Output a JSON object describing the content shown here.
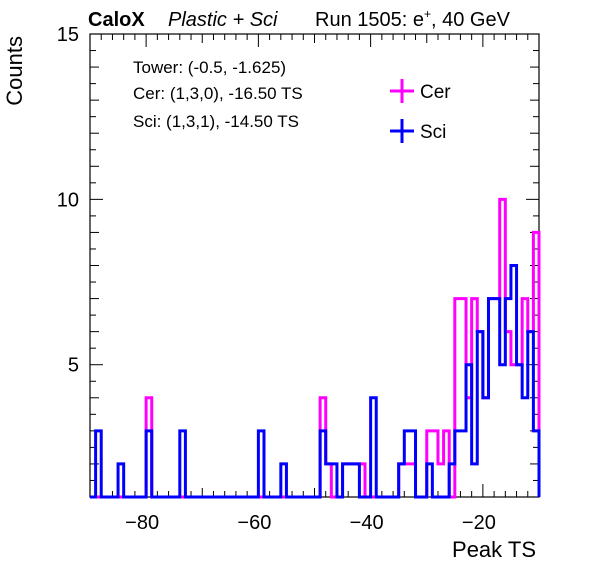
{
  "header": {
    "brand": "CaloX",
    "subtitle": "Plastic + Sci",
    "run": "Run 1505: e",
    "run_sup": "+",
    "run_tail": ", 40 GeV"
  },
  "info": {
    "line1": "Tower: (-0.5, -1.625)",
    "line2": "Cer: (1,3,0), -16.50 TS",
    "line3": "Sci: (1,3,1), -14.50 TS"
  },
  "chart_data": {
    "type": "histogram",
    "xlabel": "Peak TS",
    "ylabel": "Counts",
    "xlim": [
      -90,
      -10
    ],
    "ylim": [
      1,
      15
    ],
    "xticks": [
      -80,
      -60,
      -40,
      -20
    ],
    "yticks": [
      5,
      10,
      15
    ],
    "bin_width": 1,
    "legend_position": "top-right",
    "series": [
      {
        "name": "Cer",
        "color": "#ff00ff",
        "bins": [
          [
            -80,
            4
          ],
          [
            -49,
            4
          ],
          [
            -48,
            2
          ],
          [
            -45,
            2
          ],
          [
            -44,
            2
          ],
          [
            -43,
            2
          ],
          [
            -42,
            2
          ],
          [
            -35,
            2
          ],
          [
            -34,
            2
          ],
          [
            -33,
            2
          ],
          [
            -30,
            3
          ],
          [
            -29,
            3
          ],
          [
            -28,
            2
          ],
          [
            -27,
            3
          ],
          [
            -25,
            7
          ],
          [
            -24,
            7
          ],
          [
            -23,
            4
          ],
          [
            -22,
            7
          ],
          [
            -21,
            6
          ],
          [
            -20,
            4
          ],
          [
            -19,
            7
          ],
          [
            -18,
            7
          ],
          [
            -17,
            10
          ],
          [
            -16,
            6
          ],
          [
            -15,
            5
          ],
          [
            -14,
            5
          ],
          [
            -13,
            7
          ],
          [
            -12,
            6
          ],
          [
            -11,
            9
          ]
        ]
      },
      {
        "name": "Sci",
        "color": "#0000ff",
        "bins": [
          [
            -89,
            3
          ],
          [
            -85,
            2
          ],
          [
            -80,
            3
          ],
          [
            -74,
            3
          ],
          [
            -60,
            3
          ],
          [
            -56,
            2
          ],
          [
            -49,
            3
          ],
          [
            -48,
            2
          ],
          [
            -47,
            2
          ],
          [
            -46,
            1
          ],
          [
            -45,
            2
          ],
          [
            -44,
            2
          ],
          [
            -43,
            2
          ],
          [
            -40,
            4
          ],
          [
            -35,
            2
          ],
          [
            -34,
            3
          ],
          [
            -33,
            3
          ],
          [
            -30,
            2
          ],
          [
            -26,
            2
          ],
          [
            -25,
            3
          ],
          [
            -24,
            3
          ],
          [
            -23,
            5
          ],
          [
            -22,
            2
          ],
          [
            -21,
            6
          ],
          [
            -20,
            4
          ],
          [
            -19,
            7
          ],
          [
            -18,
            7
          ],
          [
            -17,
            5
          ],
          [
            -16,
            7
          ],
          [
            -15,
            8
          ],
          [
            -14,
            5
          ],
          [
            -13,
            4
          ],
          [
            -12,
            6
          ],
          [
            -11,
            3
          ]
        ]
      }
    ]
  }
}
